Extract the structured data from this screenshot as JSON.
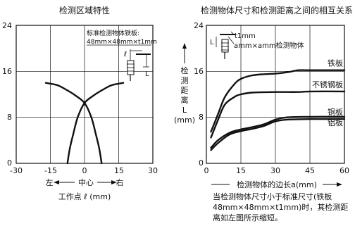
{
  "chart_data": [
    {
      "type": "line",
      "title": "检测区域特性",
      "xlabel": "工作点 ℓ (mm)",
      "x_direction": {
        "left": "左",
        "center": "中心",
        "right": "右"
      },
      "xlim": [
        -30,
        30
      ],
      "ylim": [
        0,
        24
      ],
      "x_ticks": [
        "-30",
        "-15",
        "0",
        "15",
        "30"
      ],
      "y_ticks": [
        "0",
        "8",
        "16",
        "24"
      ],
      "grid": true,
      "annotation": [
        "标准检测物体铁板:",
        "48mm×48mm×t1mm"
      ],
      "sensor_labels": {
        "distance": "L",
        "offset": "ℓ"
      },
      "series": [
        {
          "values": [
            [
              -17,
              14
            ],
            [
              -12,
              13.6
            ],
            [
              -8,
              12.8
            ],
            [
              -4,
              11.8
            ],
            [
              0,
              10.5
            ],
            [
              3,
              8
            ],
            [
              5,
              5
            ],
            [
              6.5,
              2.5
            ],
            [
              7.5,
              0
            ]
          ]
        },
        {
          "values": [
            [
              17,
              14
            ],
            [
              12,
              13.6
            ],
            [
              8,
              12.8
            ],
            [
              4,
              11.8
            ],
            [
              0,
              10.5
            ],
            [
              -3,
              8
            ],
            [
              -5,
              5
            ],
            [
              -6.5,
              2.5
            ],
            [
              -7.5,
              0
            ]
          ]
        }
      ]
    },
    {
      "type": "line",
      "title": "检测物体尺寸和检测距离之间的相互关系",
      "xlabel": "检测物体的边长a(mm)",
      "ylabel": [
        "检",
        "测",
        "距",
        "离",
        "L",
        "(mm)"
      ],
      "xlim": [
        0,
        60
      ],
      "ylim": [
        0,
        24
      ],
      "x_ticks": [
        "0",
        "15",
        "30",
        "45",
        "60"
      ],
      "y_ticks": [
        "0",
        "8",
        "16",
        "24"
      ],
      "grid": true,
      "legend": [
        "t1mm",
        "amm×amm检测物体"
      ],
      "sensor_labels": {
        "distance": "L"
      },
      "series": [
        {
          "name": "铁板",
          "values": [
            [
              2,
              5.5
            ],
            [
              5,
              8.5
            ],
            [
              8,
              11.5
            ],
            [
              12,
              13.7
            ],
            [
              15,
              14.7
            ],
            [
              20,
              15.3
            ],
            [
              25,
              15.5
            ],
            [
              30,
              15.6
            ],
            [
              36,
              15.9
            ],
            [
              40,
              16.2
            ],
            [
              45,
              16.2
            ],
            [
              60,
              16.2
            ]
          ]
        },
        {
          "name": "不锈钢板",
          "values": [
            [
              2,
              4.5
            ],
            [
              5,
              7.5
            ],
            [
              8,
              10.2
            ],
            [
              12,
              11.5
            ],
            [
              15,
              12
            ],
            [
              20,
              12.3
            ],
            [
              30,
              12.4
            ],
            [
              40,
              12.4
            ],
            [
              45,
              12.5
            ],
            [
              60,
              12.5
            ]
          ]
        },
        {
          "name": "铜板",
          "values": [
            [
              2,
              2.3
            ],
            [
              5,
              3.5
            ],
            [
              10,
              5
            ],
            [
              15,
              5.6
            ],
            [
              20,
              6
            ],
            [
              25,
              6.5
            ],
            [
              30,
              7.3
            ],
            [
              35,
              7.6
            ],
            [
              45,
              7.7
            ],
            [
              60,
              7.7
            ]
          ]
        },
        {
          "name": "铝板",
          "values": [
            [
              2,
              2.7
            ],
            [
              5,
              4
            ],
            [
              10,
              5.3
            ],
            [
              15,
              5.9
            ],
            [
              20,
              6.3
            ],
            [
              25,
              6.8
            ],
            [
              30,
              7.6
            ],
            [
              35,
              8
            ],
            [
              45,
              8.1
            ],
            [
              60,
              8.1
            ]
          ]
        }
      ]
    }
  ],
  "note": "当检测物体尺寸小于标准尺寸(铁板48mm×48mm×t1mm)时，其检测距离如左图所示缩短。"
}
